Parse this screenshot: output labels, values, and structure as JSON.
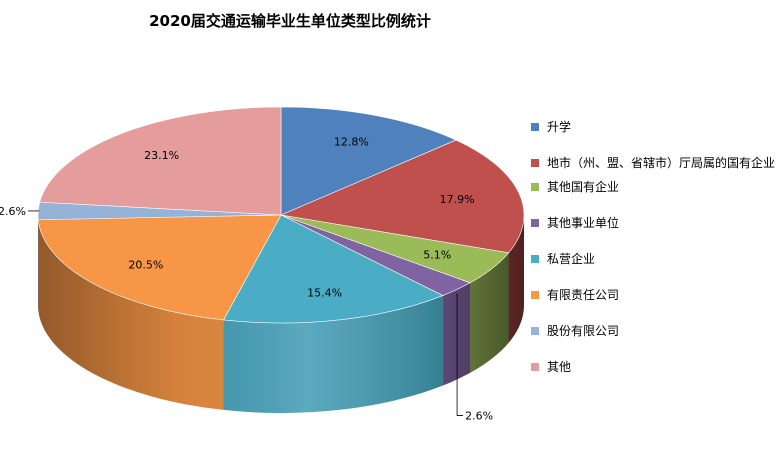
{
  "chart_data": {
    "type": "pie",
    "title": "2020届交通运输毕业生单位类型比例统计",
    "categories": [
      "升学",
      "地市（州、盟、省辖市）厅局属的国有企业",
      "其他国有企业",
      "其他事业单位",
      "私营企业",
      "有限责任公司",
      "股份有限公司",
      "其他"
    ],
    "values": [
      12.8,
      17.9,
      5.1,
      2.6,
      15.4,
      20.5,
      2.6,
      23.1
    ],
    "labels": [
      "12.8%",
      "17.9%",
      "5.1%",
      "2.6%",
      "15.4%",
      "20.5%",
      "2.6%",
      "23.1%"
    ],
    "unit": "%",
    "colors": [
      "#4f81bd",
      "#c0504d",
      "#9bbb59",
      "#8064a2",
      "#4bacc6",
      "#f79646",
      "#95b3d7",
      "#e59c9c"
    ],
    "legend_position": "right",
    "style": "3d"
  }
}
